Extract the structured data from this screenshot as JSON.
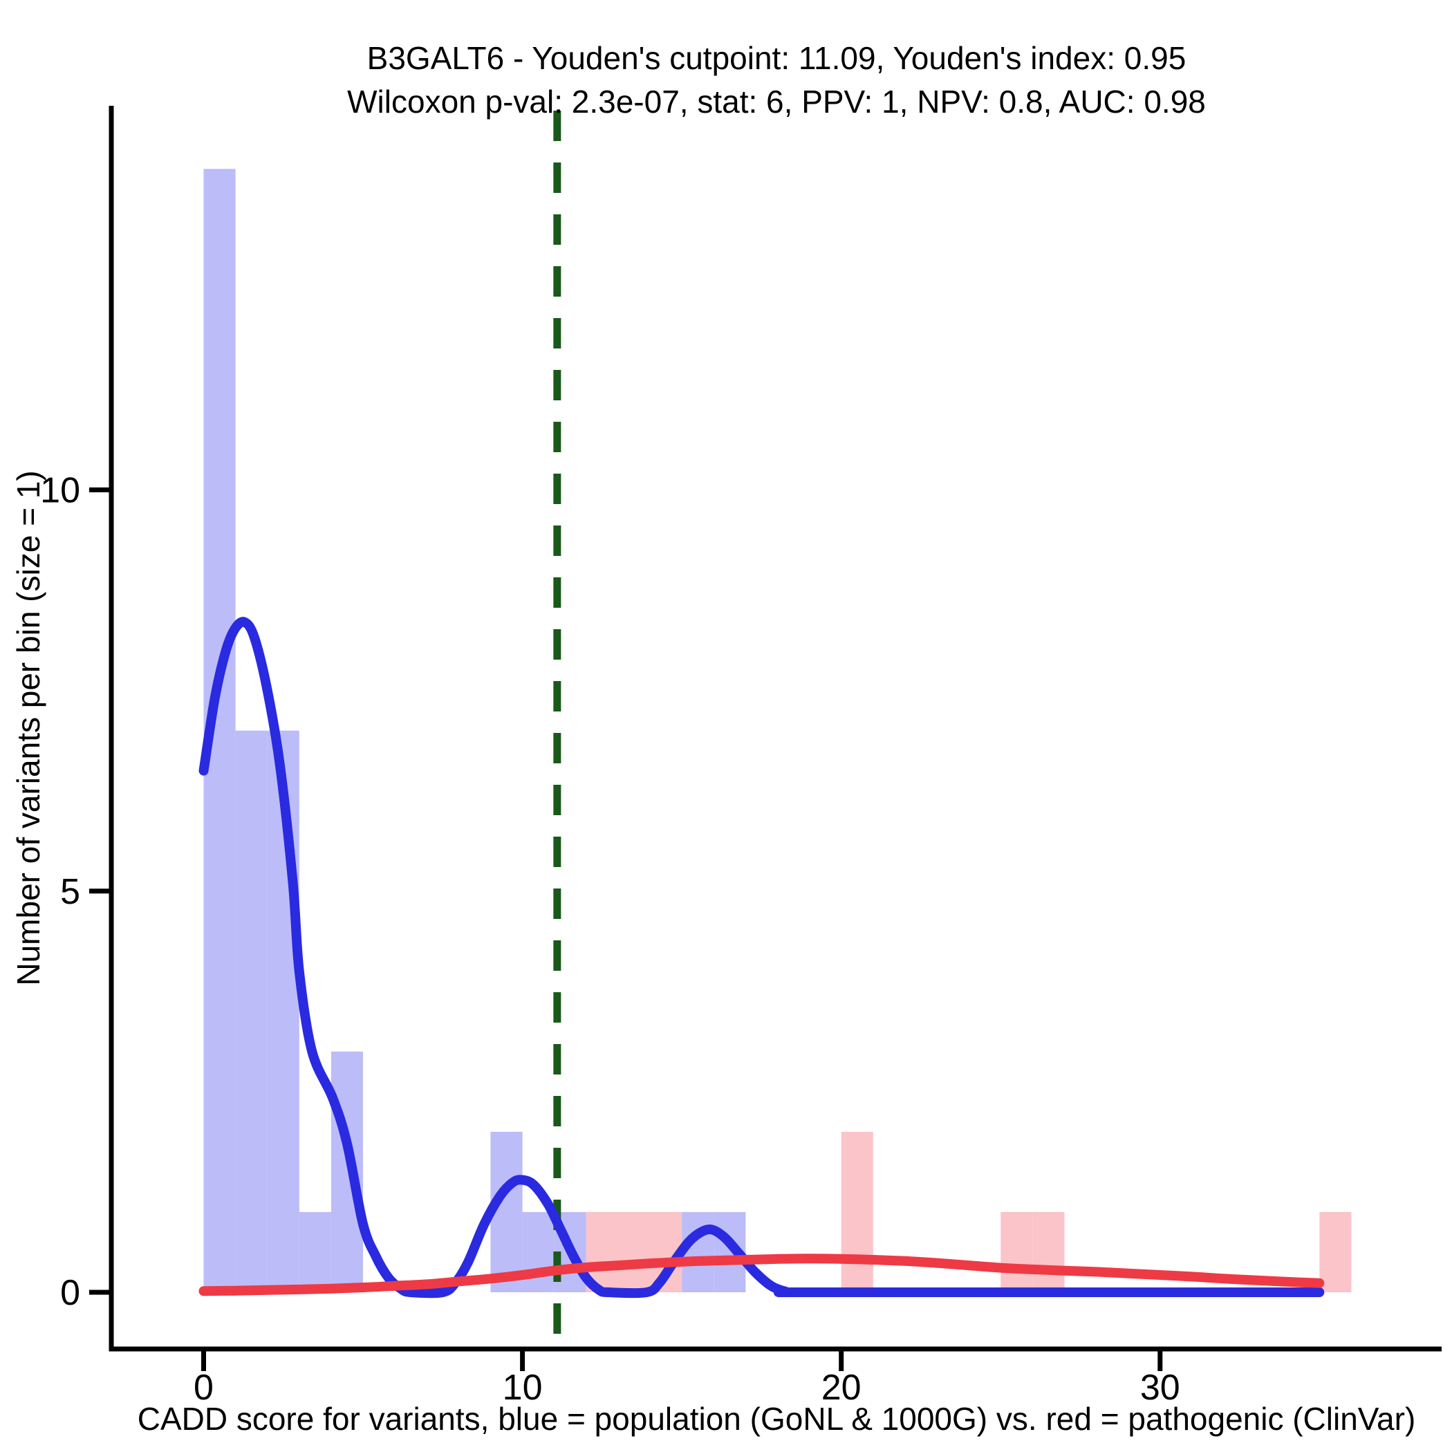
{
  "title": {
    "line1": "B3GALT6 - Youden's cutpoint: 11.09, Youden's index: 0.95",
    "line2": "Wilcoxon p-val: 2.3e-07, stat: 6, PPV: 1, NPV: 0.8, AUC: 0.98"
  },
  "axes": {
    "xlabel": "CADD score for variants, blue = population (GoNL & 1000G) vs. red = pathogenic (ClinVar)",
    "ylabel": "Number of variants per bin (size = 1)",
    "x_ticks": [
      0,
      10,
      20,
      30
    ],
    "y_ticks": [
      0,
      5,
      10
    ]
  },
  "colors": {
    "blue_fill": "#bcbcf8",
    "red_fill": "#fbc4c8",
    "blue_line": "#2a2ae0",
    "red_line": "#ee3a45",
    "cutpoint_green": "#195919",
    "axis_black": "#000000"
  },
  "chart_data": {
    "type": "bar",
    "subtype": "histogram-with-density",
    "title": "B3GALT6 - Youden's cutpoint: 11.09, Youden's index: 0.95 / Wilcoxon p-val: 2.3e-07, stat: 6, PPV: 1, NPV: 0.8, AUC: 0.98",
    "xlabel": "CADD score for variants, blue = population (GoNL & 1000G) vs. red = pathogenic (ClinVar)",
    "ylabel": "Number of variants per bin (size = 1)",
    "xlim": [
      -2.9,
      38.8
    ],
    "ylim": [
      -0.7,
      14.8
    ],
    "bin_width": 1,
    "cutpoint_x": 11.09,
    "grid": false,
    "legend_position": "none",
    "series": [
      {
        "name": "population (GoNL & 1000G)",
        "color_key": "blue",
        "bins": [
          {
            "x0": 0,
            "x1": 1,
            "count": 14
          },
          {
            "x0": 1,
            "x1": 2,
            "count": 7
          },
          {
            "x0": 2,
            "x1": 3,
            "count": 7
          },
          {
            "x0": 3,
            "x1": 4,
            "count": 1
          },
          {
            "x0": 4,
            "x1": 5,
            "count": 3
          },
          {
            "x0": 9,
            "x1": 10,
            "count": 2
          },
          {
            "x0": 10,
            "x1": 11,
            "count": 1
          },
          {
            "x0": 11,
            "x1": 12,
            "count": 1
          },
          {
            "x0": 15,
            "x1": 16,
            "count": 1
          },
          {
            "x0": 16,
            "x1": 17,
            "count": 1
          }
        ],
        "density": [
          [
            0,
            6.5
          ],
          [
            0.35,
            7.4
          ],
          [
            0.7,
            8.0
          ],
          [
            1.0,
            8.28
          ],
          [
            1.3,
            8.35
          ],
          [
            1.6,
            8.15
          ],
          [
            2.0,
            7.5
          ],
          [
            2.4,
            6.55
          ],
          [
            2.8,
            5.1
          ],
          [
            3.0,
            4.0
          ],
          [
            3.4,
            3.0
          ],
          [
            4.05,
            2.42
          ],
          [
            4.5,
            1.85
          ],
          [
            5.0,
            0.85
          ],
          [
            5.4,
            0.45
          ],
          [
            5.8,
            0.18
          ],
          [
            6.2,
            0.04
          ],
          [
            6.5,
            0
          ],
          [
            7.5,
            0
          ],
          [
            7.9,
            0.12
          ],
          [
            8.3,
            0.38
          ],
          [
            8.8,
            0.85
          ],
          [
            9.3,
            1.2
          ],
          [
            9.7,
            1.37
          ],
          [
            10.0,
            1.4
          ],
          [
            10.35,
            1.34
          ],
          [
            10.8,
            1.1
          ],
          [
            11.2,
            0.78
          ],
          [
            11.6,
            0.45
          ],
          [
            12.0,
            0.18
          ],
          [
            12.4,
            0.03
          ],
          [
            12.7,
            0
          ],
          [
            13.9,
            0
          ],
          [
            14.3,
            0.12
          ],
          [
            14.7,
            0.35
          ],
          [
            15.2,
            0.62
          ],
          [
            15.6,
            0.75
          ],
          [
            15.95,
            0.78
          ],
          [
            16.35,
            0.68
          ],
          [
            16.8,
            0.48
          ],
          [
            17.3,
            0.25
          ],
          [
            17.8,
            0.08
          ],
          [
            18.25,
            0.01
          ],
          [
            18.6,
            0
          ],
          [
            25,
            0
          ],
          [
            35,
            0
          ]
        ]
      },
      {
        "name": "pathogenic (ClinVar)",
        "color_key": "red",
        "bins": [
          {
            "x0": 12,
            "x1": 13,
            "count": 1
          },
          {
            "x0": 13,
            "x1": 14,
            "count": 1
          },
          {
            "x0": 14,
            "x1": 15,
            "count": 1
          },
          {
            "x0": 20,
            "x1": 21,
            "count": 2
          },
          {
            "x0": 25,
            "x1": 26,
            "count": 1
          },
          {
            "x0": 26,
            "x1": 27,
            "count": 1
          },
          {
            "x0": 35,
            "x1": 36,
            "count": 1
          }
        ],
        "density": [
          [
            0,
            0.015
          ],
          [
            1,
            0.02
          ],
          [
            2,
            0.028
          ],
          [
            3,
            0.035
          ],
          [
            4,
            0.046
          ],
          [
            5,
            0.06
          ],
          [
            6,
            0.08
          ],
          [
            7,
            0.1
          ],
          [
            8,
            0.135
          ],
          [
            9,
            0.17
          ],
          [
            10,
            0.215
          ],
          [
            11,
            0.27
          ],
          [
            12,
            0.31
          ],
          [
            13,
            0.335
          ],
          [
            14,
            0.36
          ],
          [
            15,
            0.38
          ],
          [
            16,
            0.395
          ],
          [
            17,
            0.405
          ],
          [
            18,
            0.415
          ],
          [
            19,
            0.42
          ],
          [
            20,
            0.415
          ],
          [
            21,
            0.405
          ],
          [
            22,
            0.39
          ],
          [
            23,
            0.365
          ],
          [
            24,
            0.335
          ],
          [
            25,
            0.305
          ],
          [
            26,
            0.285
          ],
          [
            27,
            0.27
          ],
          [
            28,
            0.255
          ],
          [
            29,
            0.235
          ],
          [
            30,
            0.215
          ],
          [
            31,
            0.195
          ],
          [
            32,
            0.17
          ],
          [
            33,
            0.15
          ],
          [
            34,
            0.13
          ],
          [
            35,
            0.115
          ]
        ]
      }
    ]
  }
}
